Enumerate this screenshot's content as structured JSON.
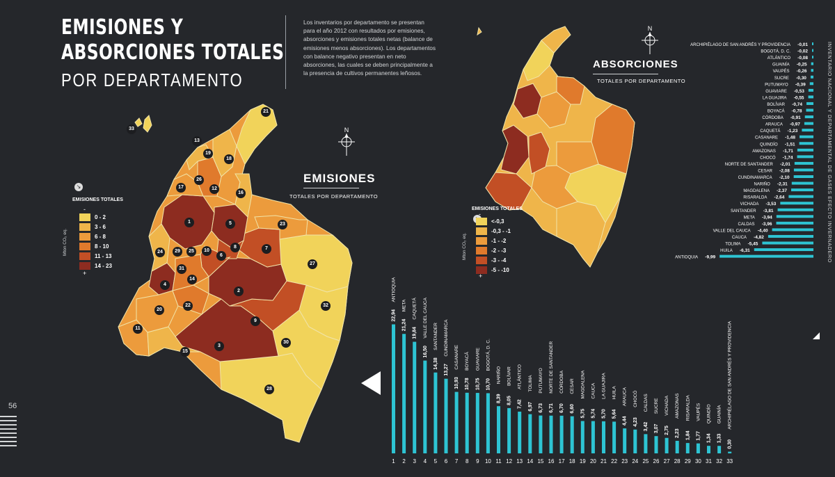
{
  "page_number": "56",
  "title": {
    "line1": "EMISIONES Y",
    "line2": "ABSORCIONES TOTALES",
    "line3": "POR DEPARTAMENTO"
  },
  "intro_text": "Los inventarios por departamento se presentan para el año 2012 con resultados por emisiones, absorciones y emisiones totales netas (balance de emisiones menos absorciones). Los departamentos con balance negativo presentan en neto absorciones, las cuales se deben principalmente a la presencia de cultivos permanentes leñosos.",
  "source_vertical": "INVENTARIO NACIONAL Y DEPARTAMENTAL DE GASES EFECTO INVERNADERO",
  "north_label": "N",
  "emissions_map": {
    "title": "EMISIONES",
    "subtitle": "TOTALES POR DEPARTAMENTO",
    "legend_title": "EMISIONES TOTALES",
    "unit_label": "Mton CO₂ eq.",
    "scale_minus": "-",
    "scale_plus": "+",
    "legend": [
      {
        "label": "0 - 2",
        "color": "#f1d35a"
      },
      {
        "label": "3 - 6",
        "color": "#efb54a"
      },
      {
        "label": "6 - 8",
        "color": "#ec9b3c"
      },
      {
        "label": "8 - 10",
        "color": "#e07a2c"
      },
      {
        "label": "11 - 13",
        "color": "#c24f25"
      },
      {
        "label": "14 - 23",
        "color": "#8d2c20"
      }
    ],
    "markers": [
      "1",
      "2",
      "3",
      "4",
      "5",
      "6",
      "7",
      "8",
      "9",
      "10",
      "11",
      "12",
      "13",
      "14",
      "15",
      "16",
      "17",
      "18",
      "19",
      "20",
      "21",
      "22",
      "23",
      "24",
      "25",
      "26",
      "27",
      "28",
      "29",
      "30",
      "31",
      "32",
      "33"
    ]
  },
  "absorptions_map": {
    "title": "ABSORCIONES",
    "subtitle": "TOTALES POR DEPARTAMENTO",
    "legend_title": "EMISIONES TOTALES",
    "unit_label": "Mton CO₂ eq.",
    "scale_minus": "-",
    "scale_plus": "+",
    "legend": [
      {
        "label": "<-0,3",
        "color": "#f1d35a"
      },
      {
        "label": "-0,3 - -1",
        "color": "#efb54a"
      },
      {
        "label": "-1 - -2",
        "color": "#ec9b3c"
      },
      {
        "label": "-2 - -3",
        "color": "#e07a2c"
      },
      {
        "label": "-3 - -4",
        "color": "#c24f25"
      },
      {
        "label": "-5 - -10",
        "color": "#8d2c20"
      }
    ]
  },
  "chart_data": [
    {
      "type": "bar",
      "orientation": "vertical",
      "name": "emisiones",
      "bar_color": "#2ec4d3",
      "numbers": [
        "1",
        "2",
        "3",
        "4",
        "5",
        "6",
        "7",
        "8",
        "9",
        "10",
        "11",
        "12",
        "13",
        "14",
        "15",
        "16",
        "17",
        "18",
        "19",
        "20",
        "21",
        "22",
        "23",
        "24",
        "25",
        "26",
        "27",
        "28",
        "29",
        "30",
        "31",
        "32",
        "33"
      ],
      "categories": [
        "ANTIOQUIA",
        "META",
        "CAQUETÁ",
        "VALLE DEL CAUCA",
        "SANTANDER",
        "CUNDINAMARCA",
        "CASANARE",
        "BOYACÁ",
        "GUAVIARE",
        "BOGOTÁ, D. C.",
        "NARIÑO",
        "BOLÍVAR",
        "ATLÁNTICO",
        "TOLIMA",
        "PUTUMAYO",
        "NORTE DE SANTANDER",
        "CÓRDOBA",
        "CESAR",
        "MAGDALENA",
        "CAUCA",
        "LA GUAJIRA",
        "HUILA",
        "ARAUCA",
        "CHOCÓ",
        "CALDAS",
        "SUCRE",
        "VICHADA",
        "AMAZONAS",
        "RISARALDA",
        "VAUPÉS",
        "QUINDÍO",
        "GUAINÍA",
        "ARCHIPIÉLAGO DE SAN ANDRÉS Y PROVIDENCIA"
      ],
      "labels": [
        "22,94",
        "21,24",
        "19,84",
        "16,50",
        "14,38",
        "13,27",
        "10,93",
        "10,78",
        "10,75",
        "10,70",
        "8,39",
        "8,05",
        "7,42",
        "6,97",
        "6,73",
        "6,71",
        "6,70",
        "6,60",
        "5,75",
        "5,74",
        "5,70",
        "5,64",
        "4,44",
        "4,23",
        "3,42",
        "3,07",
        "2,75",
        "2,23",
        "1,84",
        "1,77",
        "1,34",
        "1,33",
        "0,30"
      ],
      "values": [
        22.94,
        21.24,
        19.84,
        16.5,
        14.38,
        13.27,
        10.93,
        10.78,
        10.75,
        10.7,
        8.39,
        8.05,
        7.42,
        6.97,
        6.73,
        6.71,
        6.7,
        6.6,
        5.75,
        5.74,
        5.7,
        5.64,
        4.44,
        4.23,
        3.42,
        3.07,
        2.75,
        2.23,
        1.84,
        1.77,
        1.34,
        1.33,
        0.3
      ]
    },
    {
      "type": "bar",
      "orientation": "horizontal",
      "name": "absorciones",
      "bar_color": "#2ec4d3",
      "categories": [
        "ARCHIPIÉLAGO DE SAN ANDRÉS Y PROVIDENCIA",
        "BOGOTÁ, D. C.",
        "ATLÁNTICO",
        "GUAINÍA",
        "VAUPÉS",
        "SUCRE",
        "PUTUMAYO",
        "GUAVIARE",
        "LA GUAJIRA",
        "BOLÍVAR",
        "BOYACÁ",
        "CÓRDOBA",
        "ARAUCA",
        "CAQUETÁ",
        "CASANARE",
        "QUINDÍO",
        "AMAZONAS",
        "CHOCÓ",
        "NORTE DE SANTANDER",
        "CESAR",
        "CUNDINAMARCA",
        "NARIÑO",
        "MAGDALENA",
        "RISARALDA",
        "VICHADA",
        "SANTANDER",
        "META",
        "CALDAS",
        "VALLE DEL CAUCA",
        "CAUCA",
        "TOLIMA",
        "HUILA",
        "ANTIOQUIA"
      ],
      "labels": [
        "-0,01",
        "-0,02",
        "-0,08",
        "-0,25",
        "-0,26",
        "-0,30",
        "-0,39",
        "-0,53",
        "-0,55",
        "-0,74",
        "-0,78",
        "-0,91",
        "-0,97",
        "-1,23",
        "-1,48",
        "-1,51",
        "-1,71",
        "-1,74",
        "-2,01",
        "-2,08",
        "-2,10",
        "-2,31",
        "-2,37",
        "-2,64",
        "-3,53",
        "-3,81",
        "-3,94",
        "-3,96",
        "-4,40",
        "-4,82",
        "-5,45",
        "-6,31",
        "-9,99"
      ],
      "values": [
        -0.01,
        -0.02,
        -0.08,
        -0.25,
        -0.26,
        -0.3,
        -0.39,
        -0.53,
        -0.55,
        -0.74,
        -0.78,
        -0.91,
        -0.97,
        -1.23,
        -1.48,
        -1.51,
        -1.71,
        -1.74,
        -2.01,
        -2.08,
        -2.1,
        -2.31,
        -2.37,
        -2.64,
        -3.53,
        -3.81,
        -3.94,
        -3.96,
        -4.4,
        -4.82,
        -5.45,
        -6.31,
        -9.99
      ]
    }
  ]
}
